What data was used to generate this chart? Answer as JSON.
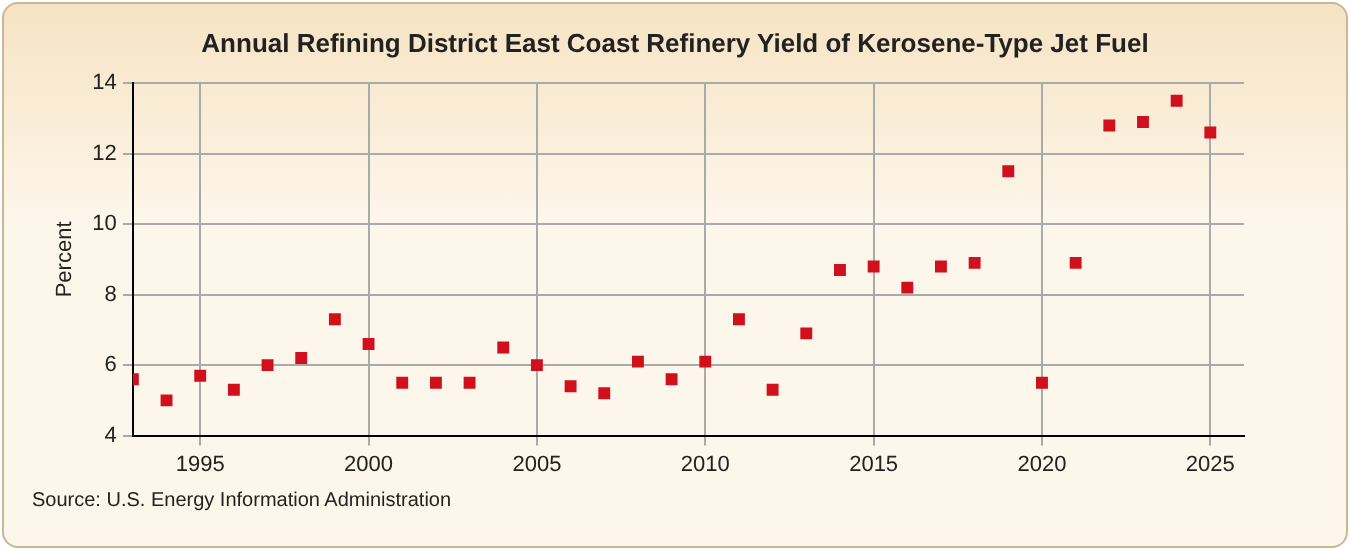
{
  "chart_data": {
    "type": "scatter",
    "title": "Annual Refining District East Coast Refinery Yield of Kerosene-Type Jet Fuel",
    "ylabel": "Percent",
    "annotations": [
      "Source: U.S. Energy Information Administration"
    ],
    "x": [
      1993,
      1994,
      1995,
      1996,
      1997,
      1998,
      1999,
      2000,
      2001,
      2002,
      2003,
      2004,
      2005,
      2006,
      2007,
      2008,
      2009,
      2010,
      2011,
      2012,
      2013,
      2014,
      2015,
      2016,
      2017,
      2018,
      2019,
      2020,
      2021,
      2022,
      2023,
      2024,
      2025
    ],
    "series": [
      {
        "color": "#d0101c",
        "values": [
          5.6,
          5.0,
          5.7,
          5.3,
          6.0,
          6.2,
          7.3,
          6.6,
          5.5,
          5.5,
          5.5,
          6.5,
          6.0,
          5.4,
          5.2,
          6.1,
          5.6,
          6.1,
          7.3,
          5.3,
          6.9,
          8.7,
          8.8,
          8.2,
          8.8,
          8.9,
          11.5,
          5.5,
          8.9,
          12.8,
          12.9,
          13.5,
          12.6
        ]
      }
    ],
    "xlim": [
      1993,
      2026
    ],
    "xticks": [
      1995,
      2000,
      2005,
      2010,
      2015,
      2020,
      2025
    ],
    "ylim": [
      4,
      14
    ],
    "yticks": [
      4,
      6,
      8,
      10,
      12,
      14
    ],
    "grid": true,
    "legend": false,
    "marker": "square"
  }
}
